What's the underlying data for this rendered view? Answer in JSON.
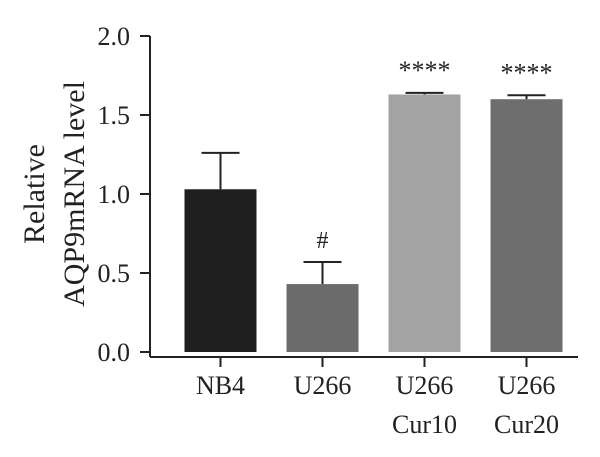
{
  "chart_data": {
    "type": "bar",
    "ylabel_lines": [
      "Relative",
      "AQP9mRNA level"
    ],
    "categories": [
      [
        "NB4"
      ],
      [
        "U266"
      ],
      [
        "U266",
        "Cur10"
      ],
      [
        "U266",
        "Cur20"
      ]
    ],
    "values": [
      1.03,
      0.43,
      1.63,
      1.6
    ],
    "errors": [
      0.23,
      0.14,
      0.01,
      0.025
    ],
    "annotations": [
      "",
      "#",
      "****",
      "****"
    ],
    "bar_colors": [
      "#1f1f1f",
      "#6b6b6b",
      "#a3a3a3",
      "#6e6e6e"
    ],
    "ylim": [
      0,
      2.0
    ],
    "yticks": [
      "0.0",
      "0.5",
      "1.0",
      "1.5",
      "2.0"
    ],
    "ytick_values": [
      0,
      0.5,
      1.0,
      1.5,
      2.0
    ]
  }
}
